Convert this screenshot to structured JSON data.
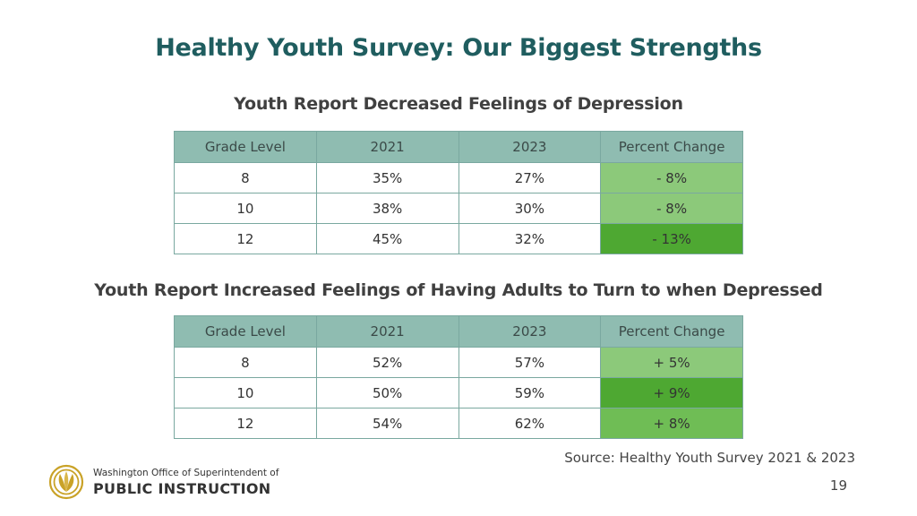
{
  "title": "Healthy Youth Survey: Our Biggest Strengths",
  "section1": {
    "heading": "Youth Report Decreased Feelings of Depression",
    "headers": [
      "Grade Level",
      "2021",
      "2023",
      "Percent Change"
    ],
    "rows": [
      [
        "8",
        "35%",
        "27%",
        "- 8%"
      ],
      [
        "10",
        "38%",
        "30%",
        "- 8%"
      ],
      [
        "12",
        "45%",
        "32%",
        "- 13%"
      ]
    ]
  },
  "section2": {
    "heading": "Youth Report Increased Feelings of Having Adults to Turn to when Depressed",
    "headers": [
      "Grade Level",
      "2021",
      "2023",
      "Percent Change"
    ],
    "rows": [
      [
        "8",
        "52%",
        "57%",
        "+ 5%"
      ],
      [
        "10",
        "50%",
        "59%",
        "+ 9%"
      ],
      [
        "12",
        "54%",
        "62%",
        "+ 8%"
      ]
    ]
  },
  "source": "Source: Healthy Youth Survey 2021 & 2023",
  "page_number": "19",
  "logo": {
    "line1": "Washington Office of Superintendent of",
    "line2": "PUBLIC INSTRUCTION",
    "icon": "ospi-seal-icon"
  },
  "colors": {
    "title": "#1f5d5f",
    "header_bg": "#8fbcb1",
    "change_light": "#8cc97a",
    "change_mid": "#6fbd55",
    "change_dark": "#4ea832",
    "logo_gold": "#c9a227"
  }
}
